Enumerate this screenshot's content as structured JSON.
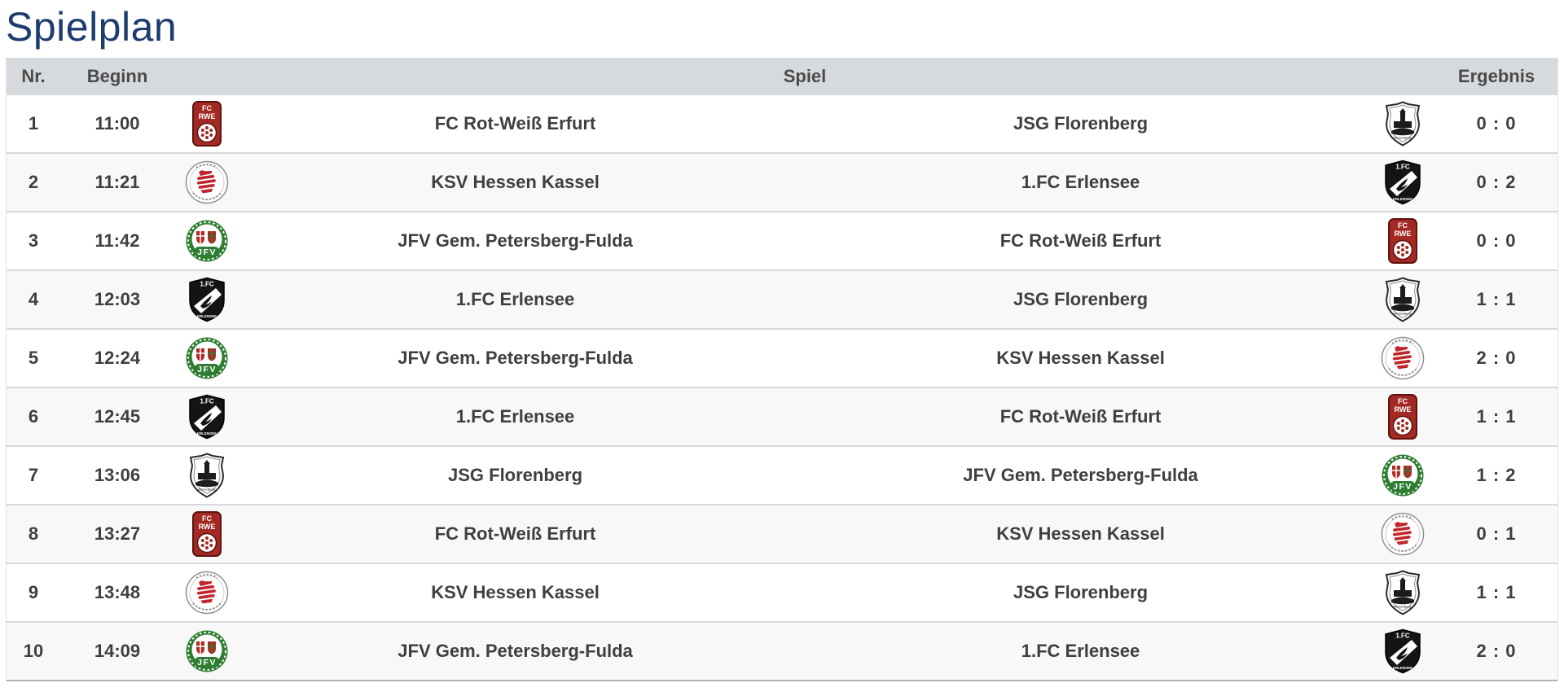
{
  "page": {
    "title": "Spielplan"
  },
  "colors": {
    "title_navy": "#1e3c6d",
    "header_bg": "#d7dadd",
    "header_text": "#4a4a4a",
    "row_text": "#3f3f3f",
    "row_alt_bg": "#f8f8f8",
    "row_separator": "#d9d9d9",
    "crest_red": "#a32a24",
    "crest_green": "#2e7d32"
  },
  "table": {
    "headers": {
      "nr": "Nr.",
      "beginn": "Beginn",
      "spiel": "Spiel",
      "ergebnis": "Ergebnis"
    },
    "matches": [
      {
        "nr": "1",
        "time": "11:00",
        "home": "FC Rot-Weiß Erfurt",
        "home_logo": "fc-rot-weiss-erfurt-crest",
        "away": "JSG Florenberg",
        "away_logo": "jsg-florenberg-crest",
        "score": "0 : 0"
      },
      {
        "nr": "2",
        "time": "11:21",
        "home": "KSV Hessen Kassel",
        "home_logo": "ksv-hessen-kassel-crest",
        "away": "1.FC Erlensee",
        "away_logo": "fc-erlensee-crest",
        "score": "0 : 2"
      },
      {
        "nr": "3",
        "time": "11:42",
        "home": "JFV Gem. Petersberg-Fulda",
        "home_logo": "jfv-petersberg-fulda-crest",
        "away": "FC Rot-Weiß Erfurt",
        "away_logo": "fc-rot-weiss-erfurt-crest",
        "score": "0 : 0"
      },
      {
        "nr": "4",
        "time": "12:03",
        "home": "1.FC Erlensee",
        "home_logo": "fc-erlensee-crest",
        "away": "JSG Florenberg",
        "away_logo": "jsg-florenberg-crest",
        "score": "1 : 1"
      },
      {
        "nr": "5",
        "time": "12:24",
        "home": "JFV Gem. Petersberg-Fulda",
        "home_logo": "jfv-petersberg-fulda-crest",
        "away": "KSV Hessen Kassel",
        "away_logo": "ksv-hessen-kassel-crest",
        "score": "2 : 0"
      },
      {
        "nr": "6",
        "time": "12:45",
        "home": "1.FC Erlensee",
        "home_logo": "fc-erlensee-crest",
        "away": "FC Rot-Weiß Erfurt",
        "away_logo": "fc-rot-weiss-erfurt-crest",
        "score": "1 : 1"
      },
      {
        "nr": "7",
        "time": "13:06",
        "home": "JSG Florenberg",
        "home_logo": "jsg-florenberg-crest",
        "away": "JFV Gem. Petersberg-Fulda",
        "away_logo": "jfv-petersberg-fulda-crest",
        "score": "1 : 2"
      },
      {
        "nr": "8",
        "time": "13:27",
        "home": "FC Rot-Weiß Erfurt",
        "home_logo": "fc-rot-weiss-erfurt-crest",
        "away": "KSV Hessen Kassel",
        "away_logo": "ksv-hessen-kassel-crest",
        "score": "0 : 1"
      },
      {
        "nr": "9",
        "time": "13:48",
        "home": "KSV Hessen Kassel",
        "home_logo": "ksv-hessen-kassel-crest",
        "away": "JSG Florenberg",
        "away_logo": "jsg-florenberg-crest",
        "score": "1 : 1"
      },
      {
        "nr": "10",
        "time": "14:09",
        "home": "JFV Gem. Petersberg-Fulda",
        "home_logo": "jfv-petersberg-fulda-crest",
        "away": "1.FC Erlensee",
        "away_logo": "fc-erlensee-crest",
        "score": "2 : 0"
      }
    ]
  }
}
